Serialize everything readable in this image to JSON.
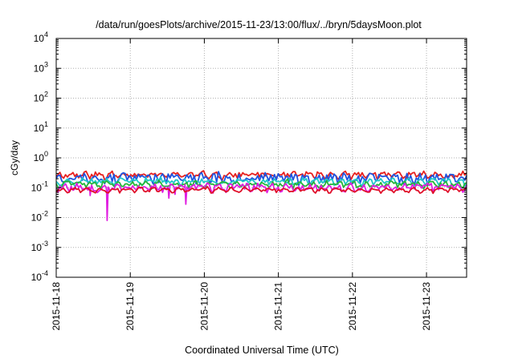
{
  "chart_data": {
    "type": "line",
    "title": "/data/run/goesPlots/archive/2015-11-23/13:00/flux/../bryn/5daysMoon.plot",
    "xlabel": "Coordinated Universal Time (UTC)",
    "ylabel": "cGy/day",
    "y_scale": "log",
    "ylim": [
      0.0001,
      10000
    ],
    "y_ticks": [
      {
        "value": 0.0001,
        "base": "10",
        "exp": "-4"
      },
      {
        "value": 0.001,
        "base": "10",
        "exp": "-3"
      },
      {
        "value": 0.01,
        "base": "10",
        "exp": "-2"
      },
      {
        "value": 0.1,
        "base": "10",
        "exp": "-1"
      },
      {
        "value": 1,
        "base": "10",
        "exp": "0"
      },
      {
        "value": 10,
        "base": "10",
        "exp": "1"
      },
      {
        "value": 100,
        "base": "10",
        "exp": "2"
      },
      {
        "value": 1000,
        "base": "10",
        "exp": "3"
      },
      {
        "value": 10000,
        "base": "10",
        "exp": "4"
      }
    ],
    "xlim": [
      "2015-11-18 00:00",
      "2015-11-23 13:00"
    ],
    "x_ticks": [
      "2015-11-18",
      "2015-11-19",
      "2015-11-20",
      "2015-11-21",
      "2015-11-22",
      "2015-11-23"
    ],
    "grid": true,
    "legend": "none",
    "series": [
      {
        "color": "#e8211f",
        "base": 0.27,
        "amp": 0.22,
        "seed": 11
      },
      {
        "color": "#1f55e0",
        "base": 0.22,
        "amp": 0.35,
        "seed": 23
      },
      {
        "color": "#1fc8c8",
        "base": 0.16,
        "amp": 0.22,
        "seed": 37
      },
      {
        "color": "#25b53a",
        "base": 0.13,
        "amp": 0.2,
        "seed": 41
      },
      {
        "color": "#e01ee0",
        "base": 0.105,
        "amp": 0.28,
        "seed": 53,
        "dips": [
          {
            "time": "2015-11-18 16:30",
            "value": 0.008
          },
          {
            "time": "2015-11-18 11:00",
            "value": 0.055
          },
          {
            "time": "2015-11-19 12:30",
            "value": 0.045
          },
          {
            "time": "2015-11-19 14:30",
            "value": 0.06
          },
          {
            "time": "2015-11-19 18:00",
            "value": 0.028
          }
        ]
      },
      {
        "color": "#e0102a",
        "base": 0.085,
        "amp": 0.12,
        "seed": 67
      }
    ]
  }
}
